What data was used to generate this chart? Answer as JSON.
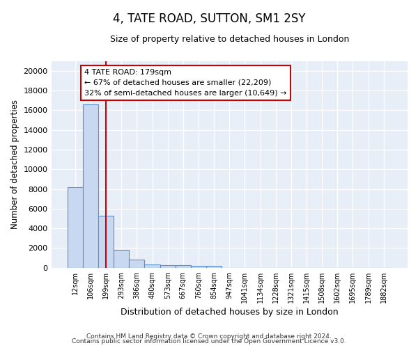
{
  "title": "4, TATE ROAD, SUTTON, SM1 2SY",
  "subtitle": "Size of property relative to detached houses in London",
  "xlabel": "Distribution of detached houses by size in London",
  "ylabel": "Number of detached properties",
  "bar_labels": [
    "12sqm",
    "106sqm",
    "199sqm",
    "293sqm",
    "386sqm",
    "480sqm",
    "573sqm",
    "667sqm",
    "760sqm",
    "854sqm",
    "947sqm",
    "1041sqm",
    "1134sqm",
    "1228sqm",
    "1321sqm",
    "1415sqm",
    "1508sqm",
    "1602sqm",
    "1695sqm",
    "1789sqm",
    "1882sqm"
  ],
  "bar_values": [
    8200,
    16600,
    5300,
    1850,
    800,
    320,
    280,
    240,
    220,
    200,
    0,
    0,
    0,
    0,
    0,
    0,
    0,
    0,
    0,
    0,
    0
  ],
  "bar_color": "#c8d8f0",
  "bar_edge_color": "#5b8fc9",
  "background_color": "#e8eef8",
  "grid_color": "#ffffff",
  "red_line_index": 2,
  "annotation_line1": "4 TATE ROAD: 179sqm",
  "annotation_line2": "← 67% of detached houses are smaller (22,209)",
  "annotation_line3": "32% of semi-detached houses are larger (10,649) →",
  "annotation_box_facecolor": "#ffffff",
  "annotation_border_color": "#cc0000",
  "ylim": [
    0,
    21000
  ],
  "yticks": [
    0,
    2000,
    4000,
    6000,
    8000,
    10000,
    12000,
    14000,
    16000,
    18000,
    20000
  ],
  "fig_facecolor": "#ffffff",
  "footer_line1": "Contains HM Land Registry data © Crown copyright and database right 2024.",
  "footer_line2": "Contains public sector information licensed under the Open Government Licence v3.0."
}
